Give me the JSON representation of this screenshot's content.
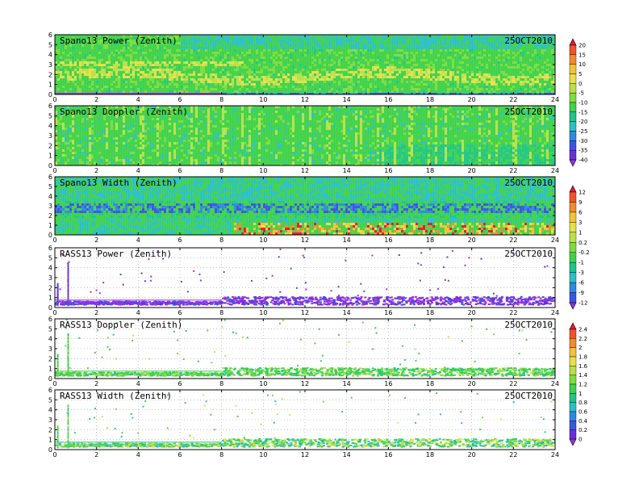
{
  "figure": {
    "date": "25OCT2010"
  },
  "chart_data": [
    {
      "type": "heatmap",
      "title": "Spano13 Power (Zenith)",
      "xlim": [
        0,
        24
      ],
      "ylim": [
        0,
        6
      ],
      "xticks": [
        "0",
        "2",
        "4",
        "6",
        "8",
        "10",
        "12",
        "14",
        "16",
        "18",
        "20",
        "22",
        "24"
      ],
      "yticks": [
        "0",
        "1",
        "2",
        "3",
        "4",
        "5",
        "6"
      ],
      "style": "dense-power"
    },
    {
      "type": "heatmap",
      "title": "Spano13 Doppler (Zenith)",
      "xlim": [
        0,
        24
      ],
      "ylim": [
        0,
        6
      ],
      "xticks": [
        "0",
        "2",
        "4",
        "6",
        "8",
        "10",
        "12",
        "14",
        "16",
        "18",
        "20",
        "22",
        "24"
      ],
      "yticks": [
        "0",
        "1",
        "2",
        "3",
        "4",
        "5",
        "6"
      ],
      "style": "dense-doppler"
    },
    {
      "type": "heatmap",
      "title": "Spano13 Width (Zenith)",
      "xlim": [
        0,
        24
      ],
      "ylim": [
        0,
        6
      ],
      "xticks": [
        "0",
        "2",
        "4",
        "6",
        "8",
        "10",
        "12",
        "14",
        "16",
        "18",
        "20",
        "22",
        "24"
      ],
      "yticks": [
        "0",
        "1",
        "2",
        "3",
        "4",
        "5",
        "6"
      ],
      "style": "dense-width"
    },
    {
      "type": "heatmap",
      "title": "RASS13 Power (Zenith)",
      "xlim": [
        0,
        24
      ],
      "ylim": [
        0,
        6
      ],
      "xticks": [
        "0",
        "2",
        "4",
        "6",
        "8",
        "10",
        "12",
        "14",
        "16",
        "18",
        "20",
        "22",
        "24"
      ],
      "yticks": [
        "0",
        "1",
        "2",
        "3",
        "4",
        "5",
        "6"
      ],
      "style": "sparse-power"
    },
    {
      "type": "heatmap",
      "title": "RASS13 Doppler (Zenith)",
      "xlim": [
        0,
        24
      ],
      "ylim": [
        0,
        6
      ],
      "xticks": [
        "0",
        "2",
        "4",
        "6",
        "8",
        "10",
        "12",
        "14",
        "16",
        "18",
        "20",
        "22",
        "24"
      ],
      "yticks": [
        "0",
        "1",
        "2",
        "3",
        "4",
        "5",
        "6"
      ],
      "style": "sparse-doppler"
    },
    {
      "type": "heatmap",
      "title": "RASS13 Width (Zenith)",
      "xlim": [
        0,
        24
      ],
      "ylim": [
        0,
        6
      ],
      "xticks": [
        "0",
        "2",
        "4",
        "6",
        "8",
        "10",
        "12",
        "14",
        "16",
        "18",
        "20",
        "22",
        "24"
      ],
      "yticks": [
        "0",
        "1",
        "2",
        "3",
        "4",
        "5",
        "6"
      ],
      "style": "sparse-width"
    }
  ],
  "colorbars": [
    {
      "name": "spano-power-doppler-scale",
      "labels": [
        "20",
        "15",
        "10",
        "5",
        "0",
        "-5",
        "-10",
        "-15",
        "-20",
        "-25",
        "-30",
        "-35",
        "-40"
      ],
      "colors": [
        "#e8173a",
        "#f0522e",
        "#f28b2c",
        "#f2c23a",
        "#e7e04a",
        "#b9e04a",
        "#7fdc3c",
        "#3fd24a",
        "#1fc58a",
        "#2bc0c8",
        "#2c8be0",
        "#3c55e0",
        "#6a2fd8",
        "#9a30e0"
      ]
    },
    {
      "name": "width-power-scale",
      "labels": [
        "12",
        "9",
        "6",
        "3",
        "1",
        "0.2",
        "-0.2",
        "-1",
        "-3",
        "-6",
        "-9",
        "-12"
      ],
      "colors": [
        "#e8173a",
        "#f0522e",
        "#f28b2c",
        "#f2c23a",
        "#e7e04a",
        "#b9e04a",
        "#7fdc3c",
        "#3fd24a",
        "#1fc58a",
        "#2bc0c8",
        "#2c8be0",
        "#3c55e0",
        "#9a30e0"
      ]
    },
    {
      "name": "rass-doppler-width-scale",
      "labels": [
        "2.4",
        "2.2",
        "2",
        "1.8",
        "1.6",
        "1.4",
        "1.2",
        "1",
        "0.8",
        "0.6",
        "0.4",
        "0.2",
        "0"
      ],
      "colors": [
        "#e8173a",
        "#f0522e",
        "#f28b2c",
        "#f2c23a",
        "#e7e04a",
        "#b9e04a",
        "#7fdc3c",
        "#3fd24a",
        "#1fc58a",
        "#2bc0c8",
        "#2c8be0",
        "#3c55e0",
        "#6a2fd8",
        "#9a30e0"
      ]
    }
  ]
}
